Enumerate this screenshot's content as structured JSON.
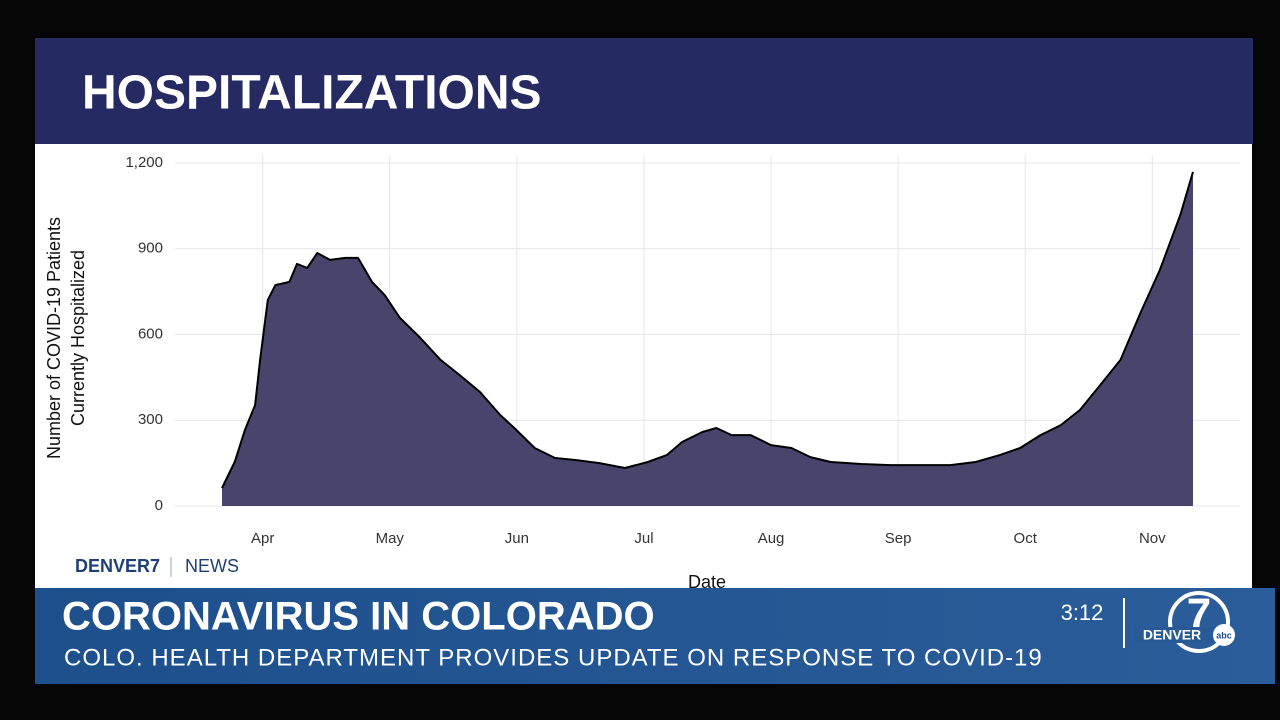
{
  "header": {
    "title": "HOSPITALIZATIONS"
  },
  "chart_data": {
    "type": "area",
    "x_label": "Date",
    "y_label": [
      "Number of COVID-19 Patients",
      "Currently Hospitalized"
    ],
    "x": [
      3.68,
      3.78,
      3.86,
      3.94,
      3.98,
      4.04,
      4.1,
      4.21,
      4.27,
      4.35,
      4.43,
      4.53,
      4.65,
      4.75,
      4.86,
      4.96,
      5.08,
      5.24,
      5.4,
      5.55,
      5.71,
      5.87,
      5.98,
      6.14,
      6.3,
      6.46,
      6.65,
      6.85,
      7.03,
      7.18,
      7.3,
      7.46,
      7.57,
      7.69,
      7.84,
      8.0,
      8.16,
      8.31,
      8.47,
      8.71,
      8.94,
      9.17,
      9.41,
      9.61,
      9.8,
      9.96,
      10.12,
      10.28,
      10.43,
      10.59,
      10.75,
      10.91,
      11.06,
      11.22,
      11.32
    ],
    "values": [
      63,
      154,
      266,
      353,
      511,
      721,
      773,
      784,
      847,
      833,
      885,
      861,
      868,
      868,
      784,
      738,
      658,
      588,
      511,
      458,
      399,
      318,
      273,
      203,
      168,
      161,
      150,
      133,
      154,
      178,
      224,
      259,
      273,
      248,
      248,
      213,
      203,
      171,
      154,
      147,
      143,
      143,
      143,
      154,
      178,
      203,
      248,
      283,
      336,
      423,
      511,
      679,
      826,
      1018,
      1169
    ],
    "color": "#48446b",
    "line_color": "#000000",
    "xlim": [
      3.31,
      11.69
    ],
    "xticks": [
      {
        "value": 4,
        "label": "Apr"
      },
      {
        "value": 5,
        "label": "May"
      },
      {
        "value": 6,
        "label": "Jun"
      },
      {
        "value": 7,
        "label": "Jul"
      },
      {
        "value": 8,
        "label": "Aug"
      },
      {
        "value": 9,
        "label": "Sep"
      },
      {
        "value": 10,
        "label": "Oct"
      },
      {
        "value": 11,
        "label": "Nov"
      }
    ],
    "ylim": [
      0,
      1200
    ],
    "yticks": [
      0,
      300,
      600,
      900,
      {
        "value": 1200,
        "label": "1,200"
      }
    ],
    "grid": true
  },
  "branding": {
    "station": "DENVER7",
    "section": "NEWS"
  },
  "lower_third": {
    "headline": "CORONAVIRUS IN COLORADO",
    "subline": "COLO. HEALTH DEPARTMENT PROVIDES UPDATE ON RESPONSE TO COVID-19",
    "time": "3:12",
    "logo_number": "7",
    "logo_text": "DENVER",
    "logo_network": "abc"
  }
}
